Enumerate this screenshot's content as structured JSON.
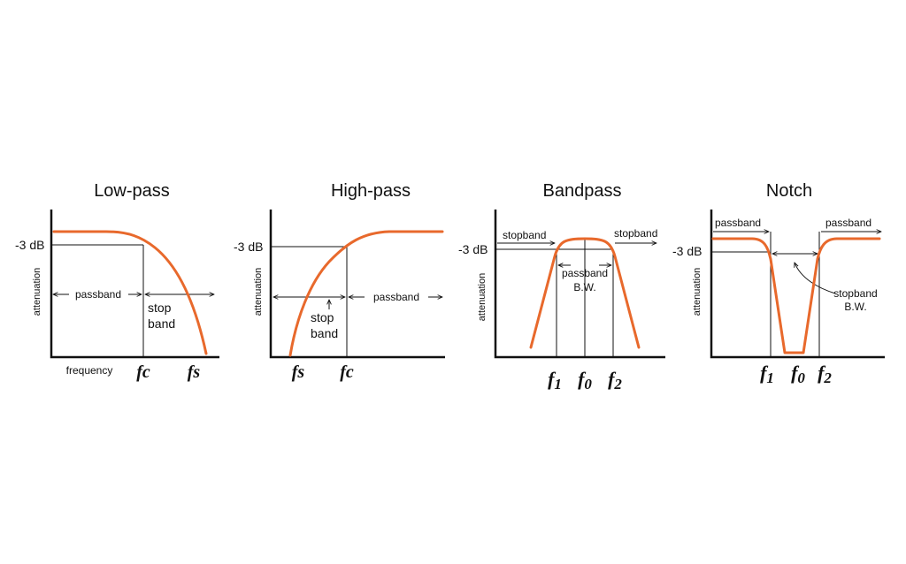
{
  "colors": {
    "curve": "#e8692c",
    "ink": "#111111"
  },
  "panels": {
    "lowpass": {
      "title": "Low-pass",
      "db_label": "-3 dB",
      "y_label": "attenuation",
      "passband": "passband",
      "stop": "stop",
      "band": "band",
      "x_label": "frequency",
      "fc": "fc",
      "fs": "fs"
    },
    "highpass": {
      "title": "High-pass",
      "db_label": "-3 dB",
      "y_label": "attenuation",
      "passband": "passband",
      "stop": "stop",
      "band": "band",
      "fs": "fs",
      "fc": "fc"
    },
    "bandpass": {
      "title": "Bandpass",
      "db_label": "-3 dB",
      "y_label": "attenuation",
      "stopband_left": "stopband",
      "stopband_right": "stopband",
      "passband": "passband",
      "bw": "B.W.",
      "f1_base": "f",
      "f1_sub": "1",
      "f0_base": "f",
      "f0_sub": "0",
      "f2_base": "f",
      "f2_sub": "2"
    },
    "notch": {
      "title": "Notch",
      "db_label": "-3 dB",
      "y_label": "attenuation",
      "passband_left": "passband",
      "passband_right": "passband",
      "stopband": "stopband",
      "bw": "B.W.",
      "f1_base": "f",
      "f1_sub": "1",
      "f0_base": "f",
      "f0_sub": "0",
      "f2_base": "f",
      "f2_sub": "2"
    }
  }
}
